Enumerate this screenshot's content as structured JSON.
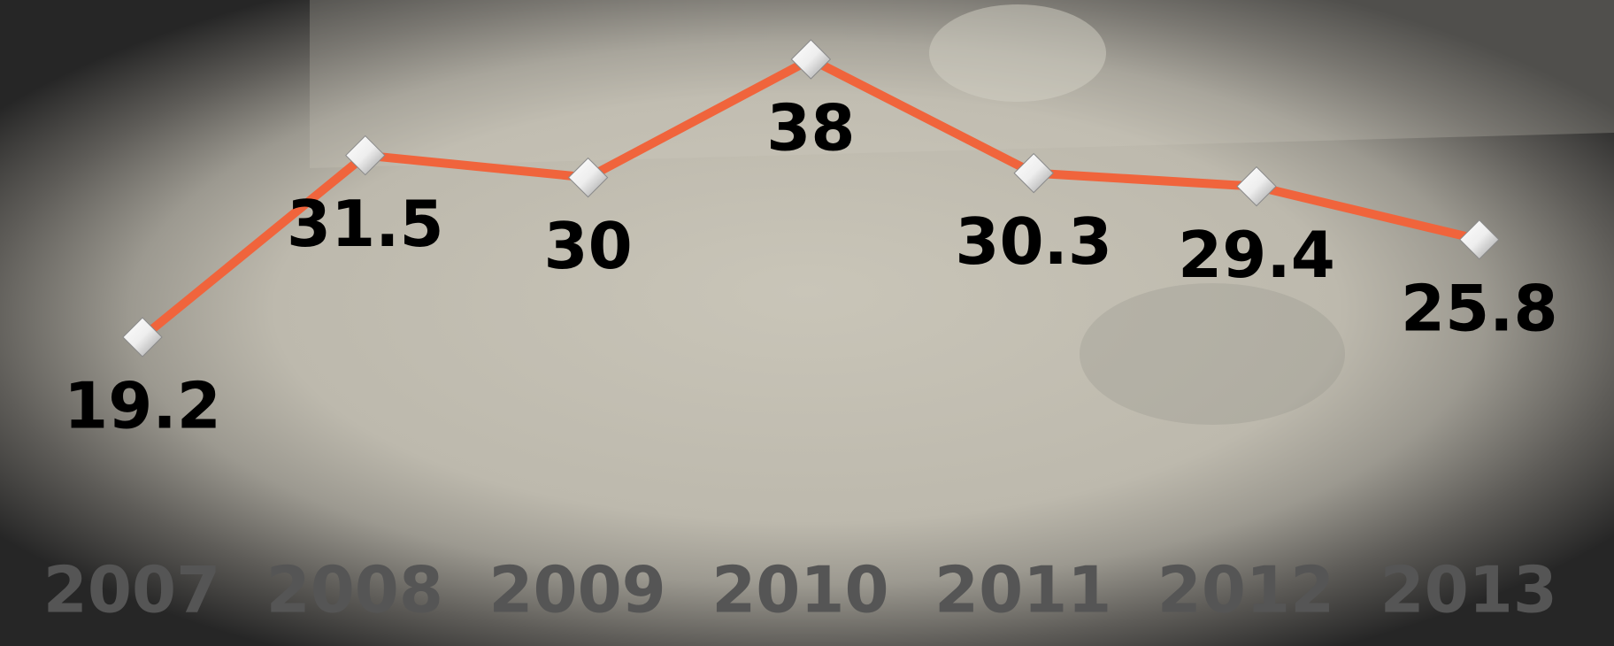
{
  "chart_data": {
    "type": "line",
    "categories": [
      "2007",
      "2008",
      "2009",
      "2010",
      "2011",
      "2012",
      "2013"
    ],
    "series": [
      {
        "color": "#f0643c",
        "values": [
          19.2,
          31.5,
          30,
          38,
          30.3,
          29.4,
          25.8
        ]
      }
    ]
  }
}
